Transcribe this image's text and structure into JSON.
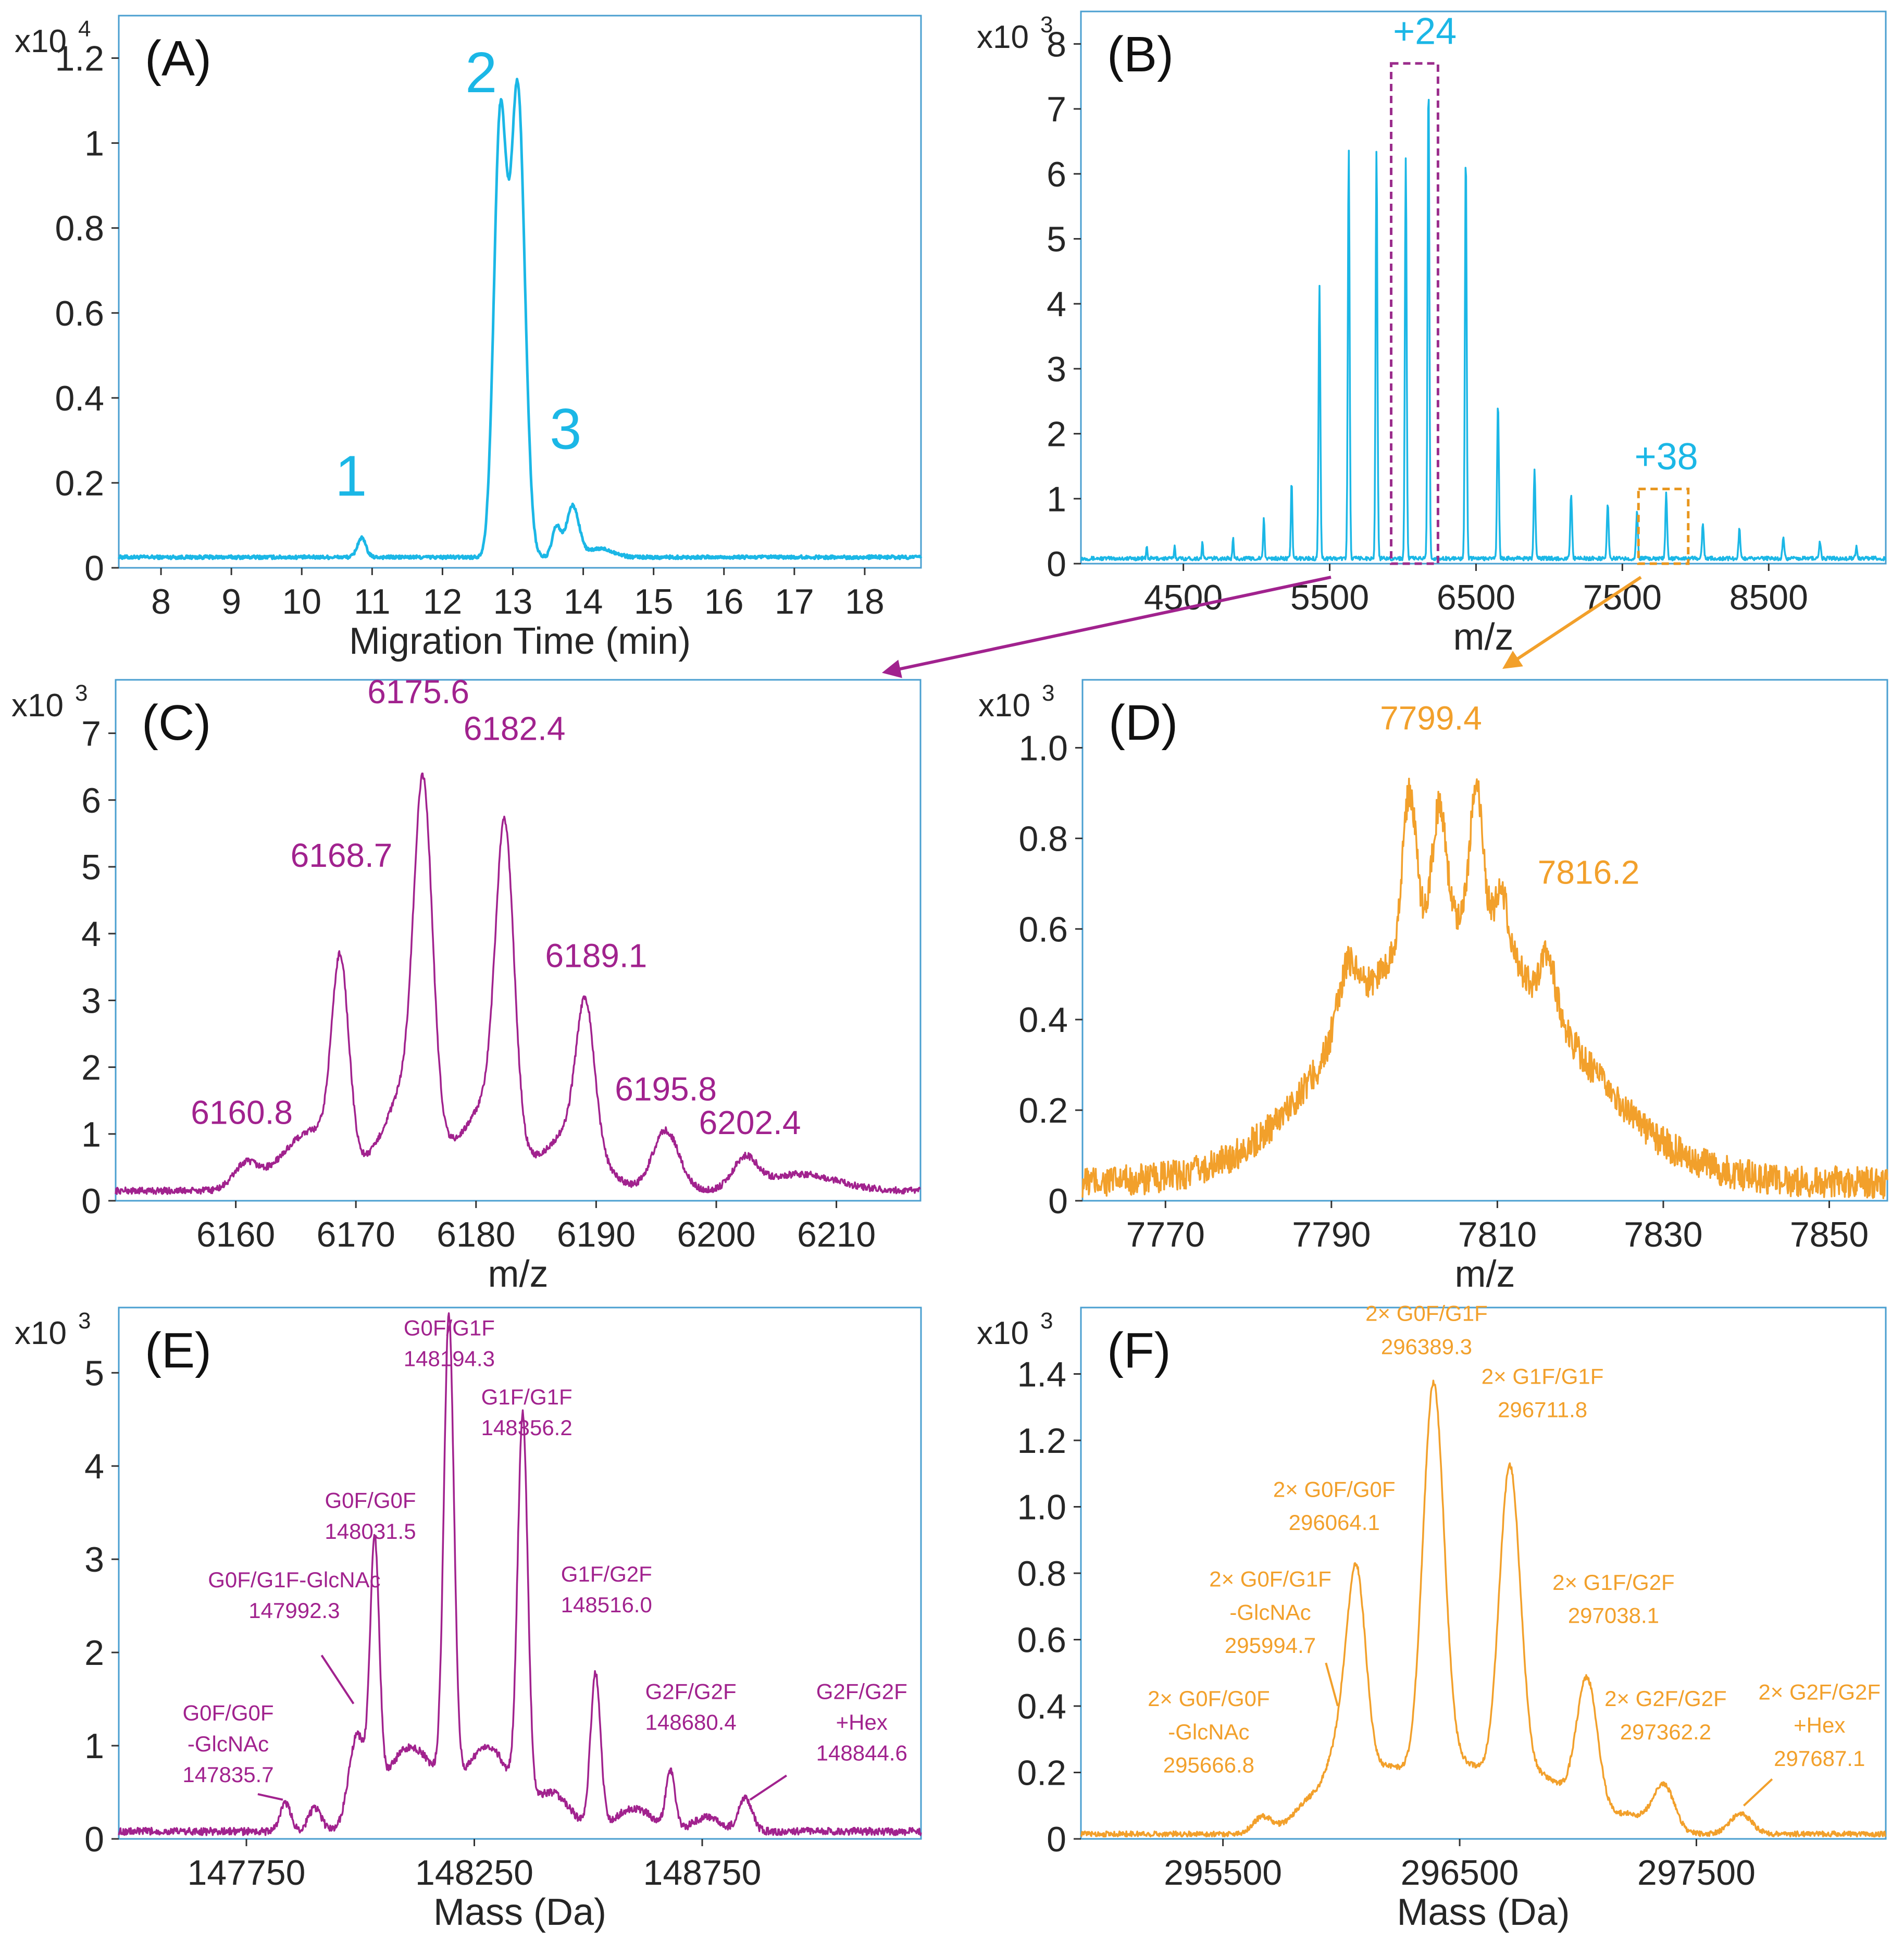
{
  "colors": {
    "cyan": "#1bb7e6",
    "purple": "#a1228e",
    "orange": "#f2a02b",
    "frame": "#4a9fd0",
    "axis": "#333333",
    "text": "#262626",
    "box_purple": "#9b2d8c",
    "box_orange": "#e8961e"
  },
  "chart_data": [
    {
      "id": "A",
      "type": "line",
      "panel_label": "(A)",
      "color": "cyan",
      "xlim": [
        7.4,
        18.8
      ],
      "ylim": [
        0,
        1.3
      ],
      "xticks": [
        "8",
        "9",
        "10",
        "11",
        "12",
        "13",
        "14",
        "15",
        "16",
        "17",
        "18"
      ],
      "yticks": [
        "0",
        "0.2",
        "0.4",
        "0.6",
        "0.8",
        "1",
        "1.2"
      ],
      "ytick_values": [
        0,
        0.2,
        0.4,
        0.6,
        0.8,
        1.0,
        1.2
      ],
      "xtick_values": [
        8,
        9,
        10,
        11,
        12,
        13,
        14,
        15,
        16,
        17,
        18
      ],
      "scale_prefix": "x10",
      "scale_exp": "4",
      "xlabel": "Migration Time (min)",
      "ylabel": "",
      "baseline": 0.025,
      "noise": 0.004,
      "peaks": [
        [
          10.85,
          0.045,
          0.06
        ],
        [
          12.82,
          1.02,
          0.09
        ],
        [
          13.07,
          1.1,
          0.1
        ],
        [
          13.62,
          0.07,
          0.06
        ],
        [
          13.85,
          0.12,
          0.09
        ],
        [
          14.25,
          0.02,
          0.18
        ]
      ],
      "annotations": [
        {
          "text": "1",
          "x": 10.7,
          "y": 0.17,
          "color": "cyan",
          "size": "big"
        },
        {
          "text": "2",
          "x": 12.55,
          "y": 1.12,
          "color": "cyan",
          "size": "big"
        },
        {
          "text": "3",
          "x": 13.75,
          "y": 0.28,
          "color": "cyan",
          "size": "big"
        }
      ]
    },
    {
      "id": "B",
      "type": "line",
      "panel_label": "(B)",
      "color": "cyan",
      "xlim": [
        3800,
        9300
      ],
      "ylim": [
        0,
        8.5
      ],
      "xticks": [
        "4500",
        "5500",
        "6500",
        "7500",
        "8500"
      ],
      "xtick_values": [
        4500,
        5500,
        6500,
        7500,
        8500
      ],
      "yticks": [
        "0",
        "1",
        "2",
        "3",
        "4",
        "5",
        "6",
        "7",
        "8"
      ],
      "ytick_values": [
        0,
        1,
        2,
        3,
        4,
        5,
        6,
        7,
        8
      ],
      "scale_prefix": "x10",
      "scale_exp": "3",
      "xlabel": "m/z",
      "ylabel": "",
      "baseline": 0.08,
      "noise": 0.03,
      "peaks": [
        [
          4250,
          0.18,
          4
        ],
        [
          4440,
          0.2,
          4
        ],
        [
          4630,
          0.25,
          4
        ],
        [
          4840,
          0.3,
          4
        ],
        [
          5050,
          0.6,
          5
        ],
        [
          5240,
          1.2,
          5
        ],
        [
          5430,
          4.2,
          6
        ],
        [
          5630,
          6.3,
          6
        ],
        [
          5820,
          6.3,
          6
        ],
        [
          6020,
          6.2,
          6
        ],
        [
          6175,
          7.4,
          6
        ],
        [
          6430,
          6.3,
          6
        ],
        [
          6650,
          2.4,
          6
        ],
        [
          6900,
          1.35,
          6
        ],
        [
          7150,
          1.0,
          6
        ],
        [
          7400,
          0.85,
          6
        ],
        [
          7600,
          0.75,
          6
        ],
        [
          7800,
          1.0,
          6
        ],
        [
          8050,
          0.55,
          6
        ],
        [
          8300,
          0.45,
          6
        ],
        [
          8600,
          0.35,
          6
        ],
        [
          8850,
          0.25,
          6
        ],
        [
          9100,
          0.18,
          6
        ]
      ],
      "annotations": [
        {
          "text": "+24",
          "x": 6150,
          "y": 8.0,
          "color": "cyan",
          "size": "mid"
        },
        {
          "text": "+38",
          "x": 7800,
          "y": 1.45,
          "color": "cyan",
          "size": "mid"
        }
      ],
      "boxes": [
        {
          "x0": 5920,
          "x1": 6240,
          "y0": 0,
          "y1": 7.7,
          "color": "box_purple"
        },
        {
          "x0": 7610,
          "x1": 7950,
          "y0": 0,
          "y1": 1.15,
          "color": "box_orange"
        }
      ]
    },
    {
      "id": "C",
      "type": "line",
      "panel_label": "(C)",
      "color": "purple",
      "xlim": [
        6150,
        6217
      ],
      "ylim": [
        0,
        7.8
      ],
      "xticks": [
        "6160",
        "6170",
        "6180",
        "6190",
        "6200",
        "6210"
      ],
      "xtick_values": [
        6160,
        6170,
        6180,
        6190,
        6200,
        6210
      ],
      "yticks": [
        "0",
        "1",
        "2",
        "3",
        "4",
        "5",
        "6",
        "7"
      ],
      "ytick_values": [
        0,
        1,
        2,
        3,
        4,
        5,
        6,
        7
      ],
      "scale_prefix": "x10",
      "scale_exp": "3",
      "xlabel": "m/z",
      "ylabel": "",
      "baseline": 0.15,
      "noise": 0.05,
      "peaks": [
        [
          6160.8,
          0.35,
          1.0
        ],
        [
          6166.5,
          0.9,
          2.6
        ],
        [
          6168.7,
          2.9,
          0.7
        ],
        [
          6174.5,
          1.6,
          2.0
        ],
        [
          6175.6,
          4.8,
          0.75
        ],
        [
          6181.0,
          1.3,
          2.0
        ],
        [
          6182.4,
          4.5,
          0.75
        ],
        [
          6188.0,
          0.9,
          2.2
        ],
        [
          6189.1,
          2.1,
          0.75
        ],
        [
          6195.8,
          0.9,
          1.1
        ],
        [
          6202.4,
          0.45,
          1.0
        ],
        [
          6207,
          0.25,
          3
        ]
      ],
      "annotations": [
        {
          "text": "6160.8",
          "x": 6160.5,
          "y": 1.15,
          "color": "purple",
          "size": "num"
        },
        {
          "text": "6168.7",
          "x": 6168.8,
          "y": 5.0,
          "color": "purple",
          "size": "num"
        },
        {
          "text": "6175.6",
          "x": 6175.2,
          "y": 7.45,
          "color": "purple",
          "size": "num"
        },
        {
          "text": "6182.4",
          "x": 6183.2,
          "y": 6.9,
          "color": "purple",
          "size": "num"
        },
        {
          "text": "6189.1",
          "x": 6190,
          "y": 3.5,
          "color": "purple",
          "size": "num"
        },
        {
          "text": "6195.8",
          "x": 6195.8,
          "y": 1.5,
          "color": "purple",
          "size": "num"
        },
        {
          "text": "6202.4",
          "x": 6202.8,
          "y": 1.0,
          "color": "purple",
          "size": "num"
        }
      ]
    },
    {
      "id": "D",
      "type": "line",
      "panel_label": "(D)",
      "color": "orange",
      "xlim": [
        7760,
        7857
      ],
      "ylim": [
        0,
        1.15
      ],
      "xticks": [
        "7770",
        "7790",
        "7810",
        "7830",
        "7850"
      ],
      "xtick_values": [
        7770,
        7790,
        7810,
        7830,
        7850
      ],
      "yticks": [
        "0",
        "0.2",
        "0.4",
        "0.6",
        "0.8",
        "1.0"
      ],
      "ytick_values": [
        0,
        0.2,
        0.4,
        0.6,
        0.8,
        1.0
      ],
      "scale_prefix": "x10",
      "scale_exp": "3",
      "xlabel": "m/z",
      "ylabel": "",
      "baseline": 0.04,
      "noise": 0.035,
      "peaks": [
        [
          7806,
          0.48,
          13
        ],
        [
          7800,
          0.12,
          10
        ],
        [
          7792,
          0.13,
          1.2
        ],
        [
          7799.4,
          0.32,
          0.8
        ],
        [
          7803,
          0.25,
          0.8
        ],
        [
          7807.5,
          0.3,
          0.8
        ],
        [
          7810.5,
          0.12,
          0.8
        ],
        [
          7816.2,
          0.12,
          0.8
        ]
      ],
      "annotations": [
        {
          "text": "7799.4",
          "x": 7802,
          "y": 1.04,
          "color": "orange",
          "size": "num"
        },
        {
          "text": "7816.2",
          "x": 7821,
          "y": 0.7,
          "color": "orange",
          "size": "num"
        }
      ]
    },
    {
      "id": "E",
      "type": "line",
      "panel_label": "(E)",
      "color": "purple",
      "xlim": [
        147470,
        149230
      ],
      "ylim": [
        0,
        5.7
      ],
      "xticks": [
        "147750",
        "148250",
        "148750"
      ],
      "xtick_values": [
        147750,
        148250,
        148750
      ],
      "yticks": [
        "0",
        "1",
        "2",
        "3",
        "4",
        "5"
      ],
      "ytick_values": [
        0,
        1,
        2,
        3,
        4,
        5
      ],
      "scale_prefix": "x10",
      "scale_exp": "3",
      "xlabel": "Mass (Da)",
      "ylabel": "",
      "baseline": 0.08,
      "noise": 0.04,
      "peaks": [
        [
          147835.7,
          0.3,
          12
        ],
        [
          147900,
          0.25,
          14
        ],
        [
          147992.3,
          0.9,
          18
        ],
        [
          148031.5,
          2.7,
          10
        ],
        [
          148110,
          0.9,
          60
        ],
        [
          148194.3,
          5.0,
          11
        ],
        [
          148280,
          0.9,
          50
        ],
        [
          148356.2,
          4.1,
          11
        ],
        [
          148420,
          0.4,
          40
        ],
        [
          148516.0,
          1.65,
          11
        ],
        [
          148600,
          0.25,
          40
        ],
        [
          148680.4,
          0.62,
          10
        ],
        [
          148844.6,
          0.35,
          15
        ],
        [
          148760,
          0.15,
          30
        ]
      ],
      "annotations": [
        {
          "text": "G0F/G1F",
          "x": 148195,
          "y": 5.4,
          "color": "purple",
          "size": "small"
        },
        {
          "text": "148194.3",
          "x": 148195,
          "y": 5.07,
          "color": "purple",
          "size": "small"
        },
        {
          "text": "G1F/G1F",
          "x": 148365,
          "y": 4.66,
          "color": "purple",
          "size": "small"
        },
        {
          "text": "148356.2",
          "x": 148365,
          "y": 4.33,
          "color": "purple",
          "size": "small"
        },
        {
          "text": "G0F/G0F",
          "x": 148022,
          "y": 3.55,
          "color": "purple",
          "size": "small"
        },
        {
          "text": "148031.5",
          "x": 148022,
          "y": 3.22,
          "color": "purple",
          "size": "small"
        },
        {
          "text": "G0F/G1F-GlcNAc",
          "x": 147855,
          "y": 2.7,
          "color": "purple",
          "size": "small"
        },
        {
          "text": "147992.3",
          "x": 147855,
          "y": 2.37,
          "color": "purple",
          "size": "small"
        },
        {
          "text": "G1F/G2F",
          "x": 148540,
          "y": 2.76,
          "color": "purple",
          "size": "small"
        },
        {
          "text": "148516.0",
          "x": 148540,
          "y": 2.43,
          "color": "purple",
          "size": "small"
        },
        {
          "text": "G0F/G0F",
          "x": 147710,
          "y": 1.27,
          "color": "purple",
          "size": "small"
        },
        {
          "text": "-GlcNAc",
          "x": 147710,
          "y": 0.94,
          "color": "purple",
          "size": "small"
        },
        {
          "text": "147835.7",
          "x": 147710,
          "y": 0.61,
          "color": "purple",
          "size": "small"
        },
        {
          "text": "G2F/G2F",
          "x": 148725,
          "y": 1.5,
          "color": "purple",
          "size": "small"
        },
        {
          "text": "148680.4",
          "x": 148725,
          "y": 1.17,
          "color": "purple",
          "size": "small"
        },
        {
          "text": "G2F/G2F",
          "x": 149100,
          "y": 1.5,
          "color": "purple",
          "size": "small"
        },
        {
          "text": "+Hex",
          "x": 149100,
          "y": 1.17,
          "color": "purple",
          "size": "small"
        },
        {
          "text": "148844.6",
          "x": 149100,
          "y": 0.84,
          "color": "purple",
          "size": "small"
        }
      ],
      "leaders": [
        {
          "x0": 147915,
          "y0": 1.97,
          "x1": 147985,
          "y1": 1.45
        },
        {
          "x0": 147775,
          "y0": 0.48,
          "x1": 147830,
          "y1": 0.42
        },
        {
          "x0": 148935,
          "y0": 0.68,
          "x1": 148855,
          "y1": 0.42
        }
      ]
    },
    {
      "id": "F",
      "type": "line",
      "panel_label": "(F)",
      "color": "orange",
      "xlim": [
        294900,
        298300
      ],
      "ylim": [
        0,
        1.6
      ],
      "xticks": [
        "295500",
        "296500",
        "297500"
      ],
      "xtick_values": [
        295500,
        296500,
        297500
      ],
      "yticks": [
        "0",
        "0.2",
        "0.4",
        "0.6",
        "0.8",
        "1.0",
        "1.2",
        "1.4"
      ],
      "ytick_values": [
        0,
        0.2,
        0.4,
        0.6,
        0.8,
        1.0,
        1.2,
        1.4
      ],
      "scale_prefix": "x10",
      "scale_exp": "3",
      "xlabel": "Mass (Da)",
      "ylabel": "",
      "baseline": 0.015,
      "noise": 0.008,
      "peaks": [
        [
          295666.8,
          0.05,
          40
        ],
        [
          295880,
          0.1,
          80
        ],
        [
          295994.7,
          0.18,
          50
        ],
        [
          296064.1,
          0.62,
          40
        ],
        [
          296200,
          0.2,
          130
        ],
        [
          296389.3,
          1.2,
          45
        ],
        [
          296530,
          0.2,
          110
        ],
        [
          296711.8,
          0.98,
          45
        ],
        [
          296850,
          0.17,
          110
        ],
        [
          297038.1,
          0.42,
          45
        ],
        [
          297200,
          0.06,
          90
        ],
        [
          297362.2,
          0.14,
          45
        ],
        [
          297687.1,
          0.06,
          45
        ]
      ],
      "annotations": [
        {
          "text": "2× G0F/G1F",
          "x": 296360,
          "y": 1.56,
          "color": "orange",
          "size": "small"
        },
        {
          "text": "296389.3",
          "x": 296360,
          "y": 1.46,
          "color": "orange",
          "size": "small"
        },
        {
          "text": "2× G1F/G1F",
          "x": 296850,
          "y": 1.37,
          "color": "orange",
          "size": "small"
        },
        {
          "text": "296711.8",
          "x": 296850,
          "y": 1.27,
          "color": "orange",
          "size": "small"
        },
        {
          "text": "2× G0F/G0F",
          "x": 295970,
          "y": 1.03,
          "color": "orange",
          "size": "small"
        },
        {
          "text": "296064.1",
          "x": 295970,
          "y": 0.93,
          "color": "orange",
          "size": "small"
        },
        {
          "text": "2× G0F/G1F",
          "x": 295700,
          "y": 0.76,
          "color": "orange",
          "size": "small"
        },
        {
          "text": "-GlcNAc",
          "x": 295700,
          "y": 0.66,
          "color": "orange",
          "size": "small"
        },
        {
          "text": "295994.7",
          "x": 295700,
          "y": 0.56,
          "color": "orange",
          "size": "small"
        },
        {
          "text": "2× G1F/G2F",
          "x": 297150,
          "y": 0.75,
          "color": "orange",
          "size": "small"
        },
        {
          "text": "297038.1",
          "x": 297150,
          "y": 0.65,
          "color": "orange",
          "size": "small"
        },
        {
          "text": "2× G0F/G0F",
          "x": 295440,
          "y": 0.4,
          "color": "orange",
          "size": "small"
        },
        {
          "text": "-GlcNAc",
          "x": 295440,
          "y": 0.3,
          "color": "orange",
          "size": "small"
        },
        {
          "text": "295666.8",
          "x": 295440,
          "y": 0.2,
          "color": "orange",
          "size": "small"
        },
        {
          "text": "2× G2F/G2F",
          "x": 297370,
          "y": 0.4,
          "color": "orange",
          "size": "small"
        },
        {
          "text": "297362.2",
          "x": 297370,
          "y": 0.3,
          "color": "orange",
          "size": "small"
        },
        {
          "text": "2× G2F/G2F",
          "x": 298020,
          "y": 0.42,
          "color": "orange",
          "size": "small"
        },
        {
          "text": "+Hex",
          "x": 298020,
          "y": 0.32,
          "color": "orange",
          "size": "small"
        },
        {
          "text": "297687.1",
          "x": 298020,
          "y": 0.22,
          "color": "orange",
          "size": "small"
        }
      ],
      "leaders": [
        {
          "x0": 295935,
          "y0": 0.53,
          "x1": 295985,
          "y1": 0.4
        },
        {
          "x0": 297820,
          "y0": 0.18,
          "x1": 297700,
          "y1": 0.1
        }
      ]
    }
  ]
}
